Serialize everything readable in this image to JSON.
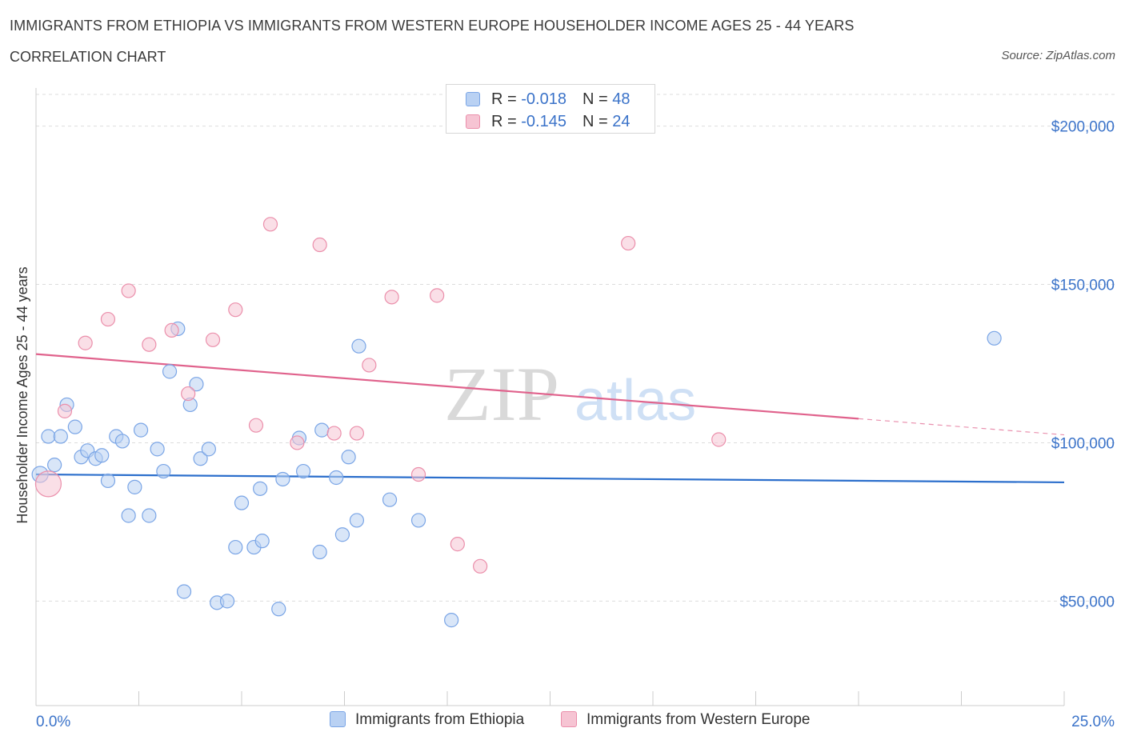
{
  "header": {
    "title": "IMMIGRANTS FROM ETHIOPIA VS IMMIGRANTS FROM WESTERN EUROPE HOUSEHOLDER INCOME AGES 25 - 44 YEARS",
    "subtitle": "CORRELATION CHART",
    "source": "Source: ZipAtlas.com"
  },
  "watermark": {
    "zip": "ZIP",
    "atlas": "atlas"
  },
  "legend": {
    "rows": [
      {
        "r_label": "R = ",
        "r_value": "-0.018",
        "n_label": "N = ",
        "n_value": "48"
      },
      {
        "r_label": "R = ",
        "r_value": "-0.145",
        "n_label": "N = ",
        "n_value": "24"
      }
    ]
  },
  "colors": {
    "series1_fill": "#b9d1f3",
    "series1_stroke": "#7aa5e6",
    "series1_line": "#2c6fcc",
    "series2_fill": "#f6c4d3",
    "series2_stroke": "#eb8fab",
    "series2_line": "#e0628c",
    "grid": "#dddddd",
    "tick_text": "#3b73c9"
  },
  "chart_data": {
    "type": "scatter",
    "title": "IMMIGRANTS FROM ETHIOPIA VS IMMIGRANTS FROM WESTERN EUROPE HOUSEHOLDER INCOME AGES 25 - 44 YEARS",
    "xlabel": "",
    "ylabel": "Householder Income Ages 25 - 44 years",
    "xlim": [
      0,
      25
    ],
    "ylim": [
      17000,
      210000
    ],
    "x_tick_labels": [
      "0.0%",
      "25.0%"
    ],
    "y_ticks": [
      {
        "value": 50000,
        "label": "$50,000"
      },
      {
        "value": 100000,
        "label": "$100,000"
      },
      {
        "value": 150000,
        "label": "$150,000"
      },
      {
        "value": 200000,
        "label": "$200,000"
      }
    ],
    "grid": true,
    "legend_position": "top-center",
    "series": [
      {
        "name": "Immigrants from Ethiopia",
        "R": -0.018,
        "N": 48,
        "trend": {
          "x": [
            0,
            25
          ],
          "y": [
            90000,
            87500
          ],
          "solid_until": 25
        },
        "points": [
          {
            "x": 0.1,
            "y": 90000,
            "r": 10
          },
          {
            "x": 0.3,
            "y": 102000
          },
          {
            "x": 0.45,
            "y": 93000
          },
          {
            "x": 0.6,
            "y": 102000
          },
          {
            "x": 0.75,
            "y": 112000
          },
          {
            "x": 0.95,
            "y": 105000
          },
          {
            "x": 1.1,
            "y": 95500
          },
          {
            "x": 1.25,
            "y": 97500
          },
          {
            "x": 1.45,
            "y": 95000
          },
          {
            "x": 1.6,
            "y": 96000
          },
          {
            "x": 1.75,
            "y": 88000
          },
          {
            "x": 1.95,
            "y": 102000
          },
          {
            "x": 2.1,
            "y": 100500
          },
          {
            "x": 2.25,
            "y": 77000
          },
          {
            "x": 2.4,
            "y": 86000
          },
          {
            "x": 2.55,
            "y": 104000
          },
          {
            "x": 2.75,
            "y": 77000
          },
          {
            "x": 2.95,
            "y": 98000
          },
          {
            "x": 3.1,
            "y": 91000
          },
          {
            "x": 3.25,
            "y": 122500
          },
          {
            "x": 3.45,
            "y": 136000
          },
          {
            "x": 3.6,
            "y": 53000
          },
          {
            "x": 3.75,
            "y": 112000
          },
          {
            "x": 3.9,
            "y": 118500
          },
          {
            "x": 4.0,
            "y": 95000
          },
          {
            "x": 4.2,
            "y": 98000
          },
          {
            "x": 4.4,
            "y": 49500
          },
          {
            "x": 4.65,
            "y": 50000
          },
          {
            "x": 4.85,
            "y": 67000
          },
          {
            "x": 5.0,
            "y": 81000
          },
          {
            "x": 5.3,
            "y": 67000
          },
          {
            "x": 5.45,
            "y": 85500
          },
          {
            "x": 5.5,
            "y": 69000
          },
          {
            "x": 5.9,
            "y": 47500
          },
          {
            "x": 6.0,
            "y": 88500
          },
          {
            "x": 6.4,
            "y": 101500
          },
          {
            "x": 6.5,
            "y": 91000
          },
          {
            "x": 6.9,
            "y": 65500
          },
          {
            "x": 6.95,
            "y": 104000
          },
          {
            "x": 7.3,
            "y": 89000
          },
          {
            "x": 7.45,
            "y": 71000
          },
          {
            "x": 7.6,
            "y": 95500
          },
          {
            "x": 7.8,
            "y": 75500
          },
          {
            "x": 7.85,
            "y": 130500
          },
          {
            "x": 8.6,
            "y": 82000
          },
          {
            "x": 9.3,
            "y": 75500
          },
          {
            "x": 10.1,
            "y": 44000
          },
          {
            "x": 23.3,
            "y": 133000
          }
        ]
      },
      {
        "name": "Immigrants from Western Europe",
        "R": -0.145,
        "N": 24,
        "trend": {
          "x": [
            0,
            25
          ],
          "y": [
            128000,
            102500
          ],
          "solid_until": 20
        },
        "points": [
          {
            "x": 0.3,
            "y": 87000,
            "r": 16
          },
          {
            "x": 0.7,
            "y": 110000
          },
          {
            "x": 1.2,
            "y": 131500
          },
          {
            "x": 1.75,
            "y": 139000
          },
          {
            "x": 2.25,
            "y": 148000
          },
          {
            "x": 2.75,
            "y": 131000
          },
          {
            "x": 3.3,
            "y": 135500
          },
          {
            "x": 3.7,
            "y": 115500
          },
          {
            "x": 4.3,
            "y": 132500
          },
          {
            "x": 4.85,
            "y": 142000
          },
          {
            "x": 5.35,
            "y": 105500
          },
          {
            "x": 5.7,
            "y": 169000
          },
          {
            "x": 6.35,
            "y": 100000
          },
          {
            "x": 6.9,
            "y": 162500
          },
          {
            "x": 7.25,
            "y": 103000
          },
          {
            "x": 7.8,
            "y": 103000
          },
          {
            "x": 8.1,
            "y": 124500
          },
          {
            "x": 8.65,
            "y": 146000
          },
          {
            "x": 9.3,
            "y": 90000
          },
          {
            "x": 9.75,
            "y": 146500
          },
          {
            "x": 10.25,
            "y": 68000
          },
          {
            "x": 10.8,
            "y": 61000
          },
          {
            "x": 14.4,
            "y": 163000
          },
          {
            "x": 16.6,
            "y": 101000
          }
        ]
      }
    ]
  }
}
